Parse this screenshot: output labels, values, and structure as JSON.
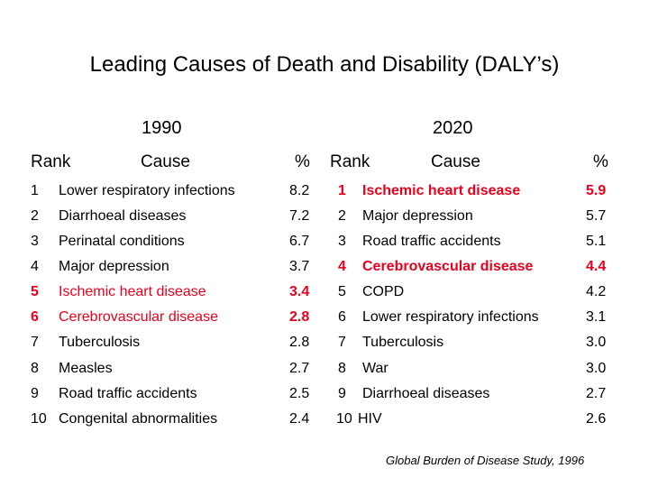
{
  "title": "Leading Causes of Death and Disability (DALY’s)",
  "years": {
    "left": "1990",
    "right": "2020"
  },
  "headers": {
    "rank": "Rank",
    "cause": "Cause",
    "percent": "%"
  },
  "colors": {
    "highlight": "#e8001c",
    "text": "#000000",
    "background": "#ffffff"
  },
  "left_rows": [
    {
      "rank": "1",
      "cause": "Lower respiratory infections",
      "percent": "8.2",
      "highlight": false
    },
    {
      "rank": "2",
      "cause": "Diarrhoeal diseases",
      "percent": "7.2",
      "highlight": false
    },
    {
      "rank": "3",
      "cause": "Perinatal conditions",
      "percent": "6.7",
      "highlight": false
    },
    {
      "rank": "4",
      "cause": "Major depression",
      "percent": "3.7",
      "highlight": false
    },
    {
      "rank": "5",
      "cause": "Ischemic heart disease",
      "percent": "3.4",
      "highlight": true
    },
    {
      "rank": "6",
      "cause": "Cerebrovascular disease",
      "percent": "2.8",
      "highlight": true
    },
    {
      "rank": "7",
      "cause": "Tuberculosis",
      "percent": "2.8",
      "highlight": false
    },
    {
      "rank": "8",
      "cause": "Measles",
      "percent": "2.7",
      "highlight": false
    },
    {
      "rank": "9",
      "cause": "Road traffic accidents",
      "percent": "2.5",
      "highlight": false
    },
    {
      "rank": "10",
      "cause": "Congenital abnormalities",
      "percent": "2.4",
      "highlight": false
    }
  ],
  "right_rows": [
    {
      "rank": "1",
      "cause": "Ischemic heart disease",
      "percent": "5.9",
      "highlight": true
    },
    {
      "rank": "2",
      "cause": "Major depression",
      "percent": "5.7",
      "highlight": false
    },
    {
      "rank": "3",
      "cause": "Road traffic accidents",
      "percent": "5.1",
      "highlight": false
    },
    {
      "rank": "4",
      "cause": "Cerebrovascular disease",
      "percent": "4.4",
      "highlight": true
    },
    {
      "rank": "5",
      "cause": "COPD",
      "percent": "4.2",
      "highlight": false
    },
    {
      "rank": "6",
      "cause": "Lower respiratory infections",
      "percent": "3.1",
      "highlight": false
    },
    {
      "rank": "7",
      "cause": "Tuberculosis",
      "percent": "3.0",
      "highlight": false
    },
    {
      "rank": "8",
      "cause": "War",
      "percent": "3.0",
      "highlight": false
    },
    {
      "rank": "9",
      "cause": "Diarrhoeal diseases",
      "percent": "2.7",
      "highlight": false
    },
    {
      "rank": "10",
      "cause": "HIV",
      "percent": "2.6",
      "highlight": false
    }
  ],
  "source": "Global Burden of Disease Study, 1996"
}
